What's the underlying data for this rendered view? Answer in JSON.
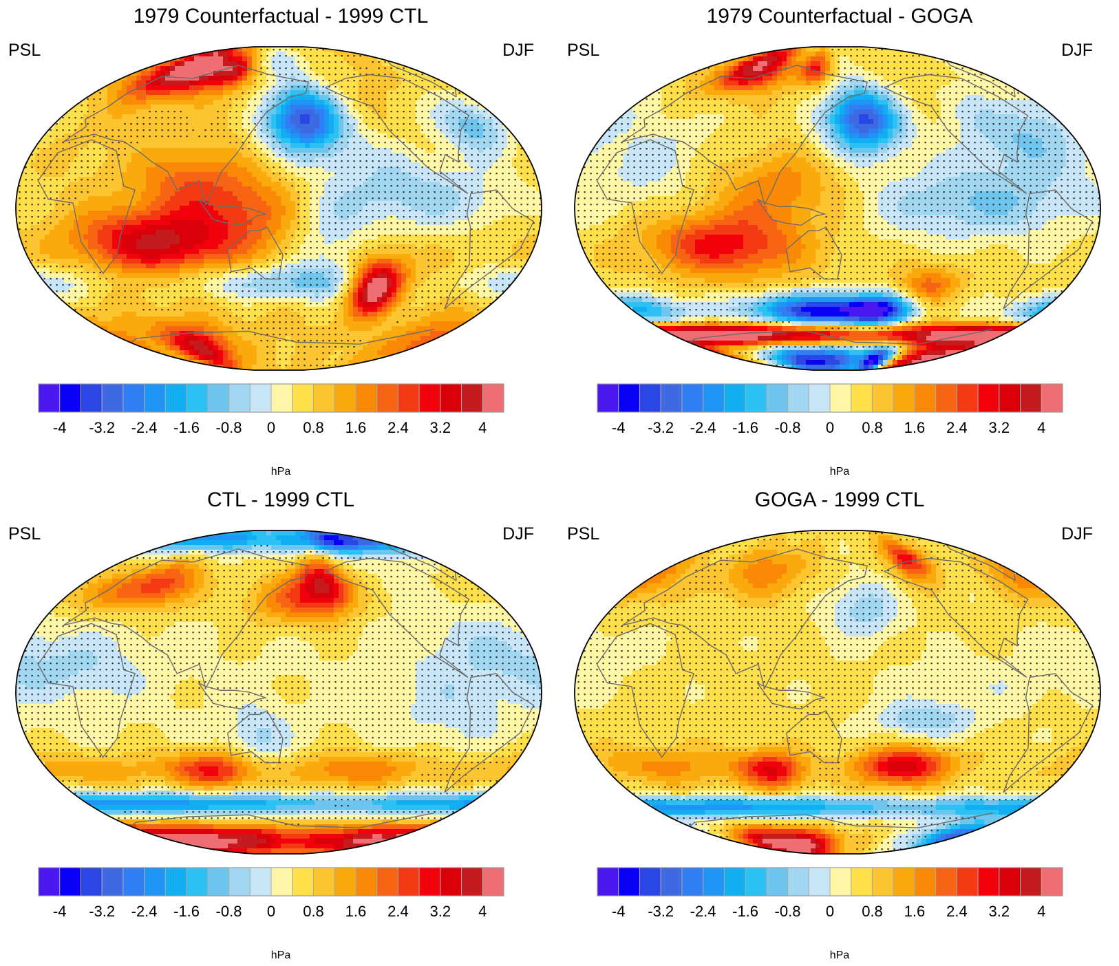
{
  "colors": {
    "palette": [
      "#4a17f0",
      "#0a00f5",
      "#2a46e4",
      "#3d6ae2",
      "#2f7ef4",
      "#1f96f6",
      "#12aef2",
      "#2cc1f3",
      "#6ec6ef",
      "#a2d7f1",
      "#c8e6f7",
      "#fff7a6",
      "#ffe04a",
      "#fdc630",
      "#fbaa0e",
      "#fa8a06",
      "#f76514",
      "#f33a12",
      "#f2000c",
      "#d90009",
      "#c51b1e",
      "#ee6e74"
    ],
    "coastline": "#6b6b6b",
    "stipple": "#111111"
  },
  "shared": {
    "levels": [
      "-4",
      "-3.2",
      "-2.4",
      "-1.6",
      "-0.8",
      "0",
      "0.8",
      "1.6",
      "2.4",
      "3.2",
      "4"
    ],
    "units": "hPa"
  },
  "panels": [
    {
      "title": "1979 Counterfactual - 1999 CTL",
      "left_label": "PSL",
      "right_label": "DJF",
      "base_value": 0.9,
      "features": [
        {
          "lon": 170,
          "lat": 48,
          "value": -4.2,
          "sx": 22,
          "sy": 13
        },
        {
          "lon": -60,
          "lat": 45,
          "value": -1.9,
          "sx": 20,
          "sy": 12
        },
        {
          "lon": 55,
          "lat": 76,
          "value": 4.0,
          "sx": 28,
          "sy": 9
        },
        {
          "lon": 100,
          "lat": 75,
          "value": 2.4,
          "sx": 14,
          "sy": 6
        },
        {
          "lon": 20,
          "lat": 70,
          "value": 1.0,
          "sx": 22,
          "sy": 10
        },
        {
          "lon": -110,
          "lat": 5,
          "value": -1.3,
          "sx": 55,
          "sy": 14
        },
        {
          "lon": -135,
          "lat": 25,
          "value": -0.6,
          "sx": 30,
          "sy": 15
        },
        {
          "lon": 65,
          "lat": -18,
          "value": 2.8,
          "sx": 38,
          "sy": 12
        },
        {
          "lon": 125,
          "lat": 0,
          "value": 1.4,
          "sx": 28,
          "sy": 14
        },
        {
          "lon": 85,
          "lat": 15,
          "value": 1.1,
          "sx": 25,
          "sy": 12
        },
        {
          "lon": -135,
          "lat": -42,
          "value": 4.2,
          "sx": 14,
          "sy": 10
        },
        {
          "lon": 150,
          "lat": -40,
          "value": -1.6,
          "sx": 55,
          "sy": 7
        },
        {
          "lon": -30,
          "lat": -40,
          "value": -1.2,
          "sx": 30,
          "sy": 7
        },
        {
          "lon": 60,
          "lat": -75,
          "value": 2.8,
          "sx": 25,
          "sy": 9
        },
        {
          "lon": -45,
          "lat": -72,
          "value": 1.4,
          "sx": 35,
          "sy": 10
        },
        {
          "lon": -175,
          "lat": -20,
          "value": -0.9,
          "sx": 18,
          "sy": 20
        },
        {
          "lon": 140,
          "lat": 80,
          "value": -0.9,
          "sx": 40,
          "sy": 7
        }
      ]
    },
    {
      "title": "1979 Counterfactual - GOGA",
      "left_label": "PSL",
      "right_label": "DJF",
      "base_value": 0.6,
      "features": [
        {
          "lon": 170,
          "lat": 48,
          "value": -4.0,
          "sx": 20,
          "sy": 12
        },
        {
          "lon": -70,
          "lat": 40,
          "value": -1.4,
          "sx": 35,
          "sy": 16
        },
        {
          "lon": 55,
          "lat": 76,
          "value": 3.4,
          "sx": 28,
          "sy": 9
        },
        {
          "lon": 125,
          "lat": 75,
          "value": 2.0,
          "sx": 12,
          "sy": 6
        },
        {
          "lon": -115,
          "lat": 3,
          "value": -1.4,
          "sx": 55,
          "sy": 14
        },
        {
          "lon": 70,
          "lat": -20,
          "value": 2.4,
          "sx": 38,
          "sy": 12
        },
        {
          "lon": 110,
          "lat": 10,
          "value": 1.3,
          "sx": 30,
          "sy": 14
        },
        {
          "lon": 130,
          "lat": -55,
          "value": -4.2,
          "sx": 38,
          "sy": 6
        },
        {
          "lon": -175,
          "lat": -55,
          "value": -3.8,
          "sx": 22,
          "sy": 6
        },
        {
          "lon": -20,
          "lat": -55,
          "value": -2.2,
          "sx": 35,
          "sy": 6
        },
        {
          "lon": 0,
          "lat": -68,
          "value": 4.5,
          "sx": 160,
          "sy": 4
        },
        {
          "lon": 120,
          "lat": -82,
          "value": -4.5,
          "sx": 50,
          "sy": 6
        },
        {
          "lon": -155,
          "lat": -82,
          "value": -4.5,
          "sx": 15,
          "sy": 6
        },
        {
          "lon": -60,
          "lat": -82,
          "value": 4.5,
          "sx": 50,
          "sy": 6
        },
        {
          "lon": -140,
          "lat": -42,
          "value": 1.6,
          "sx": 16,
          "sy": 8
        },
        {
          "lon": 20,
          "lat": 25,
          "value": -0.7,
          "sx": 25,
          "sy": 18
        }
      ]
    },
    {
      "title": "CTL - 1999 CTL",
      "left_label": "PSL",
      "right_label": "DJF",
      "base_value": 0.35,
      "features": [
        {
          "lon": -170,
          "lat": 58,
          "value": 2.9,
          "sx": 16,
          "sy": 10
        },
        {
          "lon": 160,
          "lat": 50,
          "value": 1.6,
          "sx": 28,
          "sy": 10
        },
        {
          "lon": 50,
          "lat": 58,
          "value": 2.2,
          "sx": 22,
          "sy": 9
        },
        {
          "lon": 0,
          "lat": 55,
          "value": 1.2,
          "sx": 25,
          "sy": 9
        },
        {
          "lon": -120,
          "lat": 82,
          "value": -4.0,
          "sx": 50,
          "sy": 5
        },
        {
          "lon": 60,
          "lat": 83,
          "value": -2.6,
          "sx": 70,
          "sy": 5
        },
        {
          "lon": -60,
          "lat": 20,
          "value": -0.7,
          "sx": 40,
          "sy": 15
        },
        {
          "lon": 10,
          "lat": 12,
          "value": -0.7,
          "sx": 35,
          "sy": 12
        },
        {
          "lon": 135,
          "lat": -25,
          "value": -0.9,
          "sx": 15,
          "sy": 12
        },
        {
          "lon": 100,
          "lat": -42,
          "value": 2.4,
          "sx": 25,
          "sy": 7
        },
        {
          "lon": -150,
          "lat": -42,
          "value": 1.6,
          "sx": 40,
          "sy": 7
        },
        {
          "lon": 0,
          "lat": -42,
          "value": 1.1,
          "sx": 50,
          "sy": 7
        },
        {
          "lon": 20,
          "lat": -60,
          "value": -2.6,
          "sx": 160,
          "sy": 4
        },
        {
          "lon": 0,
          "lat": -80,
          "value": 4.5,
          "sx": 160,
          "sy": 6
        },
        {
          "lon": -90,
          "lat": -10,
          "value": -0.5,
          "sx": 30,
          "sy": 15
        }
      ]
    },
    {
      "title": "GOGA - 1999 CTL",
      "left_label": "PSL",
      "right_label": "DJF",
      "base_value": 0.55,
      "features": [
        {
          "lon": 170,
          "lat": 45,
          "value": -1.2,
          "sx": 20,
          "sy": 11
        },
        {
          "lon": -135,
          "lat": 72,
          "value": 2.6,
          "sx": 14,
          "sy": 8
        },
        {
          "lon": -30,
          "lat": 62,
          "value": 1.6,
          "sx": 25,
          "sy": 10
        },
        {
          "lon": 80,
          "lat": 65,
          "value": 1.3,
          "sx": 30,
          "sy": 10
        },
        {
          "lon": -160,
          "lat": -40,
          "value": 3.0,
          "sx": 25,
          "sy": 7
        },
        {
          "lon": 100,
          "lat": -42,
          "value": 2.6,
          "sx": 18,
          "sy": 7
        },
        {
          "lon": 20,
          "lat": -40,
          "value": 1.2,
          "sx": 40,
          "sy": 7
        },
        {
          "lon": -150,
          "lat": -15,
          "value": -1.2,
          "sx": 25,
          "sy": 7
        },
        {
          "lon": -110,
          "lat": 5,
          "value": -0.4,
          "sx": 50,
          "sy": 12
        },
        {
          "lon": 30,
          "lat": -62,
          "value": -2.7,
          "sx": 160,
          "sy": 4
        },
        {
          "lon": 80,
          "lat": -82,
          "value": 4.5,
          "sx": 45,
          "sy": 6
        },
        {
          "lon": -60,
          "lat": -78,
          "value": -3.4,
          "sx": 35,
          "sy": 6
        },
        {
          "lon": -30,
          "lat": 20,
          "value": -0.5,
          "sx": 30,
          "sy": 12
        }
      ]
    }
  ]
}
